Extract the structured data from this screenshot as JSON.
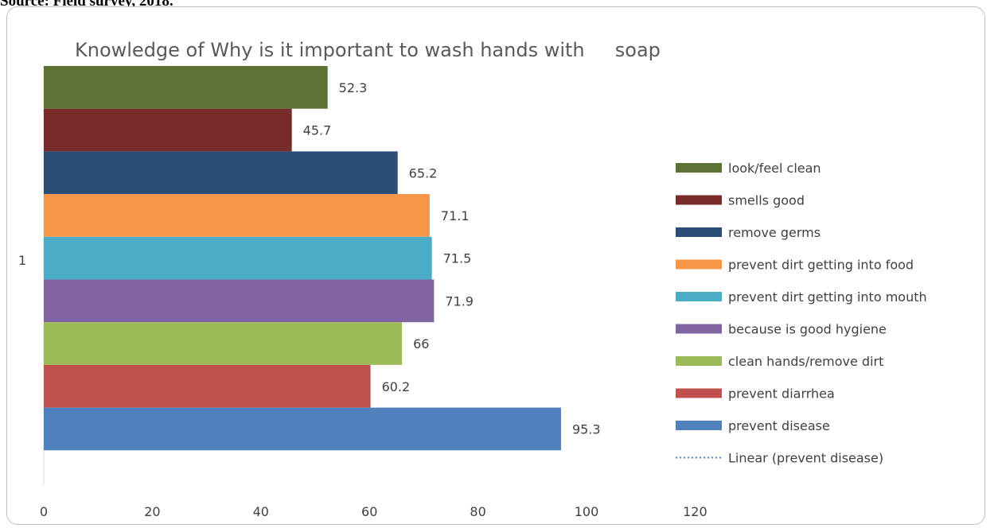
{
  "source_text": "Source: Field survey, 2018.",
  "chart_data": {
    "type": "bar",
    "orientation": "horizontal",
    "title": "Knowledge of Why is it important to wash hands with     soap",
    "xlabel": "",
    "ylabel": "",
    "categories": [
      "1"
    ],
    "xlim": [
      0,
      120
    ],
    "x_ticks": [
      0,
      20,
      40,
      60,
      80,
      100,
      120
    ],
    "grid": false,
    "legend_position": "right",
    "series": [
      {
        "name": "look/feel clean",
        "values": [
          52.3
        ],
        "label": "52.3",
        "color": "#5b7232"
      },
      {
        "name": "smells good",
        "values": [
          45.7
        ],
        "label": "45.7",
        "color": "#772c2a"
      },
      {
        "name": "remove germs",
        "values": [
          65.2
        ],
        "label": "65.2",
        "color": "#2c4d75"
      },
      {
        "name": "prevent dirt getting into food",
        "values": [
          71.1
        ],
        "label": "71.1",
        "color": "#f79646"
      },
      {
        "name": "prevent dirt getting into mouth",
        "values": [
          71.5
        ],
        "label": "71.5",
        "color": "#4bacc6"
      },
      {
        "name": "because is good hygiene",
        "values": [
          71.9
        ],
        "label": "71.9",
        "color": "#8064a2"
      },
      {
        "name": "clean hands/remove dirt",
        "values": [
          66
        ],
        "label": "66",
        "color": "#9bbb59"
      },
      {
        "name": "prevent diarrhea",
        "values": [
          60.2
        ],
        "label": "60.2",
        "color": "#c0504d"
      },
      {
        "name": "prevent disease",
        "values": [
          95.3
        ],
        "label": "95.3",
        "color": "#4f81bd"
      }
    ],
    "trendline": {
      "name": "Linear (prevent disease)",
      "style": "dotted",
      "color": "#4f81bd"
    }
  }
}
